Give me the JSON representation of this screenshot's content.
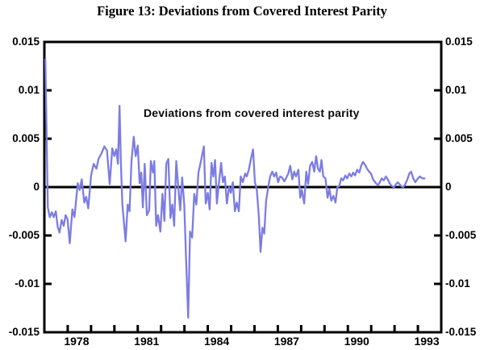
{
  "figure": {
    "title": "Figure 13: Deviations from Covered Interest Parity"
  },
  "chart_data": {
    "type": "line",
    "title": "Figure 13: Deviations from Covered Interest Parity",
    "annotation": "Deviations from covered interest parity",
    "series_name": "Deviations from covered interest parity",
    "line_color": "#7c7ce4",
    "axis_color": "#000000",
    "grid": false,
    "legend_position": "none",
    "zero_line": true,
    "xlim": [
      1977,
      1994
    ],
    "ylim": [
      -0.015,
      0.015
    ],
    "x_tick_years": [
      1978,
      1979,
      1980,
      1981,
      1982,
      1983,
      1984,
      1985,
      1986,
      1987,
      1988,
      1989,
      1990,
      1991,
      1992,
      1993
    ],
    "x_axis_labels": [
      {
        "year": 1978,
        "label": "1978"
      },
      {
        "year": 1981,
        "label": "1981"
      },
      {
        "year": 1984,
        "label": "1984"
      },
      {
        "year": 1987,
        "label": "1987"
      },
      {
        "year": 1990,
        "label": "1990"
      },
      {
        "year": 1993,
        "label": "1993"
      }
    ],
    "y_minor_ticks": [
      0.01,
      0.005,
      -0.005,
      -0.01
    ],
    "y_axis_labels": [
      {
        "value": 0.015,
        "label": "0.015"
      },
      {
        "value": 0.01,
        "label": "0.01"
      },
      {
        "value": 0.005,
        "label": "0.005"
      },
      {
        "value": 0,
        "label": "0"
      },
      {
        "value": -0.005,
        "label": "-0.005"
      },
      {
        "value": -0.01,
        "label": "-0.01"
      },
      {
        "value": -0.015,
        "label": "-0.015"
      }
    ],
    "points": [
      [
        1977.04,
        0.0132
      ],
      [
        1977.15,
        -0.0021
      ],
      [
        1977.23,
        -0.0031
      ],
      [
        1977.32,
        -0.0026
      ],
      [
        1977.4,
        -0.0031
      ],
      [
        1977.49,
        -0.0025
      ],
      [
        1977.57,
        -0.0041
      ],
      [
        1977.65,
        -0.0047
      ],
      [
        1977.74,
        -0.0034
      ],
      [
        1977.83,
        -0.004
      ],
      [
        1977.91,
        -0.0029
      ],
      [
        1977.99,
        -0.0033
      ],
      [
        1978.09,
        -0.0058
      ],
      [
        1978.2,
        -0.0023
      ],
      [
        1978.29,
        -0.0031
      ],
      [
        1978.43,
        0.0004
      ],
      [
        1978.51,
        -0.0003
      ],
      [
        1978.6,
        0.0008
      ],
      [
        1978.71,
        -0.0016
      ],
      [
        1978.79,
        -0.001
      ],
      [
        1978.88,
        -0.0022
      ],
      [
        1979.0,
        0.0012
      ],
      [
        1979.11,
        0.0024
      ],
      [
        1979.23,
        0.0019
      ],
      [
        1979.32,
        0.0029
      ],
      [
        1979.45,
        0.0035
      ],
      [
        1979.57,
        0.0042
      ],
      [
        1979.68,
        0.0038
      ],
      [
        1979.8,
        0.0003
      ],
      [
        1979.91,
        0.004
      ],
      [
        1980.0,
        0.0032
      ],
      [
        1980.08,
        0.0039
      ],
      [
        1980.15,
        0.0024
      ],
      [
        1980.22,
        0.0084
      ],
      [
        1980.28,
        0.0024
      ],
      [
        1980.34,
        -0.0018
      ],
      [
        1980.48,
        -0.0056
      ],
      [
        1980.57,
        -0.0018
      ],
      [
        1980.65,
        -0.0025
      ],
      [
        1980.73,
        0.0027
      ],
      [
        1980.83,
        0.0052
      ],
      [
        1980.91,
        0.0032
      ],
      [
        1981.0,
        0.0043
      ],
      [
        1981.08,
        0.0004
      ],
      [
        1981.15,
        0.0015
      ],
      [
        1981.22,
        -0.0021
      ],
      [
        1981.3,
        0.0024
      ],
      [
        1981.39,
        -0.0029
      ],
      [
        1981.49,
        -0.0024
      ],
      [
        1981.56,
        0.0027
      ],
      [
        1981.65,
        0.0015
      ],
      [
        1981.71,
        0.0027
      ],
      [
        1981.79,
        -0.004
      ],
      [
        1981.87,
        -0.0029
      ],
      [
        1981.97,
        -0.0046
      ],
      [
        1982.06,
        -0.0007
      ],
      [
        1982.14,
        -0.0035
      ],
      [
        1982.22,
        0.0024
      ],
      [
        1982.31,
        0.0029
      ],
      [
        1982.4,
        -0.0032
      ],
      [
        1982.48,
        -0.0018
      ],
      [
        1982.56,
        -0.004
      ],
      [
        1982.65,
        0.0027
      ],
      [
        1982.74,
        -0.0001
      ],
      [
        1982.82,
        -0.0024
      ],
      [
        1982.9,
        0.001
      ],
      [
        1982.99,
        -0.0018
      ],
      [
        1983.08,
        -0.0082
      ],
      [
        1983.16,
        -0.0135
      ],
      [
        1983.24,
        -0.0046
      ],
      [
        1983.33,
        -0.0052
      ],
      [
        1983.42,
        -0.0007
      ],
      [
        1983.51,
        -0.0018
      ],
      [
        1983.6,
        0.0015
      ],
      [
        1983.7,
        0.0026
      ],
      [
        1983.83,
        0.0042
      ],
      [
        1983.91,
        -0.0017
      ],
      [
        1984.0,
        -0.0006
      ],
      [
        1984.08,
        -0.0023
      ],
      [
        1984.16,
        0.0025
      ],
      [
        1984.24,
        0.0011
      ],
      [
        1984.31,
        0.0028
      ],
      [
        1984.39,
        -0.0017
      ],
      [
        1984.48,
        0.0005
      ],
      [
        1984.57,
        0.0025
      ],
      [
        1984.65,
        0.0005
      ],
      [
        1984.73,
        0.0011
      ],
      [
        1984.82,
        -0.0017
      ],
      [
        1984.91,
        0.0
      ],
      [
        1984.99,
        -0.0006
      ],
      [
        1985.07,
        0.0005
      ],
      [
        1985.16,
        -0.0025
      ],
      [
        1985.24,
        -0.0016
      ],
      [
        1985.33,
        -0.0025
      ],
      [
        1985.41,
        0.0011
      ],
      [
        1985.5,
        0.0005
      ],
      [
        1985.6,
        0.0014
      ],
      [
        1985.67,
        0.0011
      ],
      [
        1985.76,
        0.0018
      ],
      [
        1985.84,
        0.0028
      ],
      [
        1985.94,
        0.0039
      ],
      [
        1986.02,
        0.0005
      ],
      [
        1986.1,
        -0.0003
      ],
      [
        1986.19,
        -0.0032
      ],
      [
        1986.26,
        -0.0067
      ],
      [
        1986.34,
        -0.0042
      ],
      [
        1986.42,
        -0.0048
      ],
      [
        1986.5,
        -0.0014
      ],
      [
        1986.59,
        0.0
      ],
      [
        1986.67,
        0.0011
      ],
      [
        1986.76,
        0.0016
      ],
      [
        1986.84,
        0.0011
      ],
      [
        1986.93,
        0.0015
      ],
      [
        1987.01,
        0.0005
      ],
      [
        1987.1,
        0.0011
      ],
      [
        1987.18,
        0.001
      ],
      [
        1987.28,
        0.0006
      ],
      [
        1987.37,
        0.001
      ],
      [
        1987.45,
        0.0014
      ],
      [
        1987.53,
        0.0022
      ],
      [
        1987.62,
        0.0008
      ],
      [
        1987.7,
        0.0016
      ],
      [
        1987.78,
        0.0011
      ],
      [
        1987.88,
        0.0018
      ],
      [
        1987.96,
        -0.0011
      ],
      [
        1988.03,
        -0.0003
      ],
      [
        1988.13,
        -0.0017
      ],
      [
        1988.22,
        0.0016
      ],
      [
        1988.3,
        0.0003
      ],
      [
        1988.38,
        0.0022
      ],
      [
        1988.47,
        0.0026
      ],
      [
        1988.56,
        0.0016
      ],
      [
        1988.64,
        0.0032
      ],
      [
        1988.72,
        0.0019
      ],
      [
        1988.8,
        0.0016
      ],
      [
        1988.87,
        0.0028
      ],
      [
        1988.95,
        0.0011
      ],
      [
        1989.04,
        0.0009
      ],
      [
        1989.13,
        -0.0011
      ],
      [
        1989.21,
        -0.0002
      ],
      [
        1989.29,
        -0.0014
      ],
      [
        1989.38,
        -0.0009
      ],
      [
        1989.47,
        -0.0016
      ],
      [
        1989.55,
        0.0
      ],
      [
        1989.63,
        0.0001
      ],
      [
        1989.72,
        0.0009
      ],
      [
        1989.8,
        0.0007
      ],
      [
        1989.89,
        0.0012
      ],
      [
        1989.97,
        0.0009
      ],
      [
        1990.06,
        0.0014
      ],
      [
        1990.15,
        0.0011
      ],
      [
        1990.23,
        0.0015
      ],
      [
        1990.31,
        0.0012
      ],
      [
        1990.4,
        0.0018
      ],
      [
        1990.49,
        0.0015
      ],
      [
        1990.57,
        0.0022
      ],
      [
        1990.65,
        0.0026
      ],
      [
        1990.74,
        0.0023
      ],
      [
        1990.82,
        0.0019
      ],
      [
        1990.91,
        0.0016
      ],
      [
        1990.99,
        0.0014
      ],
      [
        1991.08,
        0.0008
      ],
      [
        1991.2,
        0.0004
      ],
      [
        1991.29,
        0.0002
      ],
      [
        1991.37,
        0.0005
      ],
      [
        1991.45,
        0.0009
      ],
      [
        1991.54,
        0.0007
      ],
      [
        1991.63,
        0.0011
      ],
      [
        1991.71,
        0.0008
      ],
      [
        1991.79,
        0.0004
      ],
      [
        1991.89,
        0.0001
      ],
      [
        1991.98,
        0.0
      ],
      [
        1992.06,
        0.0003
      ],
      [
        1992.14,
        0.0005
      ],
      [
        1992.21,
        0.0003
      ],
      [
        1992.29,
        0.0001
      ],
      [
        1992.37,
        0.0
      ],
      [
        1992.46,
        0.0003
      ],
      [
        1992.55,
        0.0008
      ],
      [
        1992.63,
        0.0014
      ],
      [
        1992.71,
        0.0016
      ],
      [
        1992.8,
        0.0009
      ],
      [
        1992.89,
        0.0005
      ],
      [
        1992.97,
        0.0008
      ],
      [
        1993.08,
        0.0011
      ],
      [
        1993.19,
        0.0009
      ],
      [
        1993.28,
        0.0009
      ]
    ]
  }
}
